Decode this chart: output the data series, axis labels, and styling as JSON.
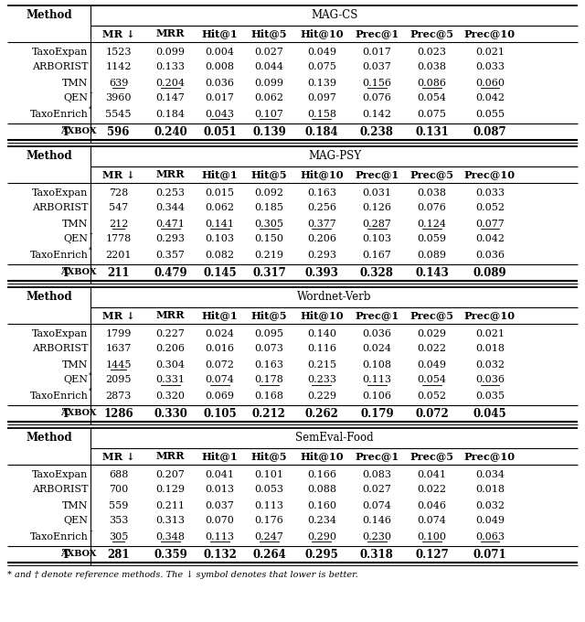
{
  "sections": [
    {
      "title": "MAG-CS",
      "rows": [
        {
          "name": "TaxoExpan",
          "sup": "",
          "values": [
            "1523",
            "0.099",
            "0.004",
            "0.027",
            "0.049",
            "0.017",
            "0.023",
            "0.021"
          ],
          "underline": []
        },
        {
          "name": "ARBORIST",
          "sup": "",
          "values": [
            "1142",
            "0.133",
            "0.008",
            "0.044",
            "0.075",
            "0.037",
            "0.038",
            "0.033"
          ],
          "underline": []
        },
        {
          "name": "TMN",
          "sup": "",
          "values": [
            "639",
            "0.204",
            "0.036",
            "0.099",
            "0.139",
            "0.156",
            "0.086",
            "0.060"
          ],
          "underline": [
            0,
            1,
            5,
            6,
            7
          ]
        },
        {
          "name": "QEN",
          "sup": "†",
          "values": [
            "3960",
            "0.147",
            "0.017",
            "0.062",
            "0.097",
            "0.076",
            "0.054",
            "0.042"
          ],
          "underline": []
        },
        {
          "name": "TaxoEnrich",
          "sup": "*",
          "values": [
            "5545",
            "0.184",
            "0.043",
            "0.107",
            "0.158",
            "0.142",
            "0.075",
            "0.055"
          ],
          "underline": [
            2,
            3,
            4
          ]
        }
      ],
      "taxobox": [
        "596",
        "0.240",
        "0.051",
        "0.139",
        "0.184",
        "0.238",
        "0.131",
        "0.087"
      ]
    },
    {
      "title": "MAG-PSY",
      "rows": [
        {
          "name": "TaxoExpan",
          "sup": "",
          "values": [
            "728",
            "0.253",
            "0.015",
            "0.092",
            "0.163",
            "0.031",
            "0.038",
            "0.033"
          ],
          "underline": []
        },
        {
          "name": "ARBORIST",
          "sup": "",
          "values": [
            "547",
            "0.344",
            "0.062",
            "0.185",
            "0.256",
            "0.126",
            "0.076",
            "0.052"
          ],
          "underline": []
        },
        {
          "name": "TMN",
          "sup": "",
          "values": [
            "212",
            "0.471",
            "0.141",
            "0.305",
            "0.377",
            "0.287",
            "0.124",
            "0.077"
          ],
          "underline": [
            0,
            1,
            2,
            3,
            4,
            5,
            6,
            7
          ]
        },
        {
          "name": "QEN",
          "sup": "†",
          "values": [
            "1778",
            "0.293",
            "0.103",
            "0.150",
            "0.206",
            "0.103",
            "0.059",
            "0.042"
          ],
          "underline": []
        },
        {
          "name": "TaxoEnrich",
          "sup": "*",
          "values": [
            "2201",
            "0.357",
            "0.082",
            "0.219",
            "0.293",
            "0.167",
            "0.089",
            "0.036"
          ],
          "underline": []
        }
      ],
      "taxobox": [
        "211",
        "0.479",
        "0.145",
        "0.317",
        "0.393",
        "0.328",
        "0.143",
        "0.089"
      ]
    },
    {
      "title": "Wordnet-Verb",
      "rows": [
        {
          "name": "TaxoExpan",
          "sup": "",
          "values": [
            "1799",
            "0.227",
            "0.024",
            "0.095",
            "0.140",
            "0.036",
            "0.029",
            "0.021"
          ],
          "underline": []
        },
        {
          "name": "ARBORIST",
          "sup": "",
          "values": [
            "1637",
            "0.206",
            "0.016",
            "0.073",
            "0.116",
            "0.024",
            "0.022",
            "0.018"
          ],
          "underline": []
        },
        {
          "name": "TMN",
          "sup": "",
          "values": [
            "1445",
            "0.304",
            "0.072",
            "0.163",
            "0.215",
            "0.108",
            "0.049",
            "0.032"
          ],
          "underline": [
            0
          ]
        },
        {
          "name": "QEN",
          "sup": "*",
          "values": [
            "2095",
            "0.331",
            "0.074",
            "0.178",
            "0.233",
            "0.113",
            "0.054",
            "0.036"
          ],
          "underline": [
            1,
            2,
            3,
            4,
            5,
            6,
            7
          ]
        },
        {
          "name": "TaxoEnrich",
          "sup": "*",
          "values": [
            "2873",
            "0.320",
            "0.069",
            "0.168",
            "0.229",
            "0.106",
            "0.052",
            "0.035"
          ],
          "underline": []
        }
      ],
      "taxobox": [
        "1286",
        "0.330",
        "0.105",
        "0.212",
        "0.262",
        "0.179",
        "0.072",
        "0.045"
      ]
    },
    {
      "title": "SemEval-Food",
      "rows": [
        {
          "name": "TaxoExpan",
          "sup": "",
          "values": [
            "688",
            "0.207",
            "0.041",
            "0.101",
            "0.166",
            "0.083",
            "0.041",
            "0.034"
          ],
          "underline": []
        },
        {
          "name": "ARBORIST",
          "sup": "",
          "values": [
            "700",
            "0.129",
            "0.013",
            "0.053",
            "0.088",
            "0.027",
            "0.022",
            "0.018"
          ],
          "underline": []
        },
        {
          "name": "TMN",
          "sup": "",
          "values": [
            "559",
            "0.211",
            "0.037",
            "0.113",
            "0.160",
            "0.074",
            "0.046",
            "0.032"
          ],
          "underline": []
        },
        {
          "name": "QEN",
          "sup": "",
          "values": [
            "353",
            "0.313",
            "0.070",
            "0.176",
            "0.234",
            "0.146",
            "0.074",
            "0.049"
          ],
          "underline": []
        },
        {
          "name": "TaxoEnrich",
          "sup": "†",
          "values": [
            "305",
            "0.348",
            "0.113",
            "0.247",
            "0.290",
            "0.230",
            "0.100",
            "0.063"
          ],
          "underline": [
            0,
            1,
            2,
            3,
            4,
            5,
            6,
            7
          ]
        }
      ],
      "taxobox": [
        "281",
        "0.359",
        "0.132",
        "0.264",
        "0.295",
        "0.318",
        "0.127",
        "0.071"
      ]
    }
  ],
  "col_headers": [
    "MR ↓",
    "MRR",
    "Hit@1",
    "Hit@5",
    "Hit@10",
    "Prec@1",
    "Prec@5",
    "Prec@10"
  ],
  "footer": "* and † denote reference methods. The ↓ symbol denotes that lower is better."
}
